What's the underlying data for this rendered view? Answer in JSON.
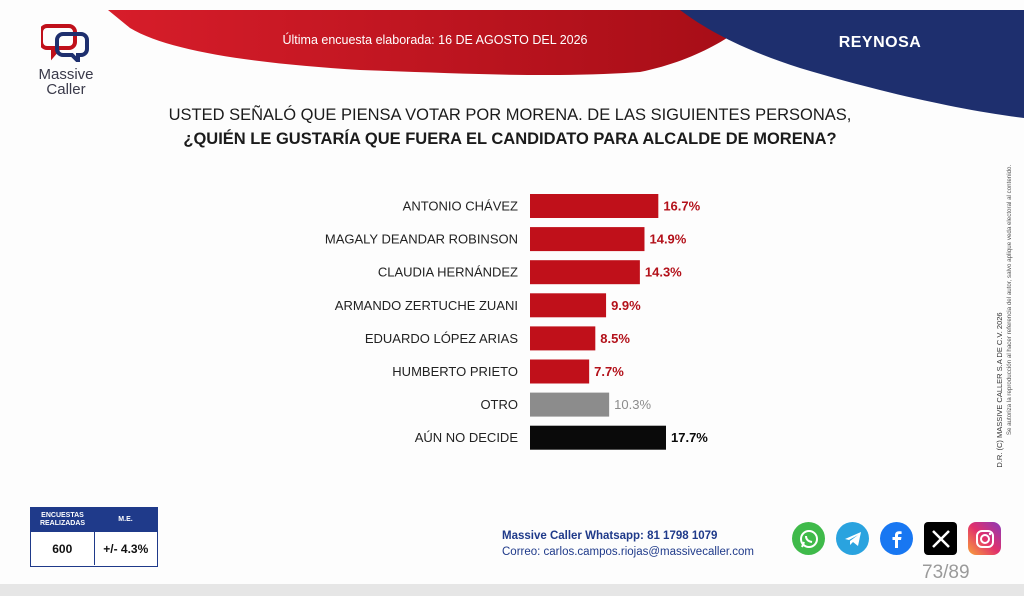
{
  "header": {
    "survey_date": "Última encuesta elaborada: 16 DE AGOSTO DEL 2026",
    "region": "REYNOSA"
  },
  "logo": {
    "line1": "Massive",
    "line2": "Caller"
  },
  "question": {
    "line1": "USTED SEÑALÓ QUE PIENSA VOTAR POR MORENA. DE LAS SIGUIENTES PERSONAS,",
    "line2": "¿QUIÉN LE GUSTARÍA QUE FUERA EL CANDIDATO PARA ALCALDE DE MORENA?"
  },
  "colors": {
    "brand_red": "#c0101a",
    "brand_navy": "#1e2f6e",
    "other_gray": "#8c8c8c",
    "undecided_black": "#0a0a0a"
  },
  "chart_data": {
    "type": "bar",
    "orientation": "horizontal",
    "categories": [
      "ANTONIO CHÁVEZ",
      "MAGALY DEANDAR ROBINSON",
      "CLAUDIA HERNÁNDEZ",
      "ARMANDO ZERTUCHE ZUANI",
      "EDUARDO LÓPEZ ARIAS",
      "HUMBERTO PRIETO",
      "OTRO",
      "AÚN NO DECIDE"
    ],
    "values": [
      16.7,
      14.9,
      14.3,
      9.9,
      8.5,
      7.7,
      10.3,
      17.7
    ],
    "value_labels": [
      "16.7%",
      "14.9%",
      "14.3%",
      "9.9%",
      "8.5%",
      "7.7%",
      "10.3%",
      "17.7%"
    ],
    "bar_colors": [
      "#c0101a",
      "#c0101a",
      "#c0101a",
      "#c0101a",
      "#c0101a",
      "#c0101a",
      "#8c8c8c",
      "#0a0a0a"
    ],
    "label_colors": [
      "#b3111a",
      "#b3111a",
      "#b3111a",
      "#b3111a",
      "#b3111a",
      "#b3111a",
      "#8c8c8c",
      "#0a0a0a"
    ],
    "title": "",
    "xlabel": "",
    "ylabel": "",
    "xlim": [
      0,
      17.7
    ],
    "grid": false,
    "legend": "none"
  },
  "side_note": {
    "line1": "D.R. (C) MASSIVE CALLER S.A DE C.V. 2026",
    "line2": "Se autoriza la reproducción al hacer referencia del autor, salvo aplique veda electoral al contenido."
  },
  "stats": {
    "col1_header_line1": "ENCUESTAS",
    "col1_header_line2": "REALIZADAS",
    "col2_header": "M.E.",
    "count": "600",
    "margin": "+/- 4.3%"
  },
  "contact": {
    "whatsapp": "Massive Caller Whatsapp: 81 1798 1079",
    "email": "Correo: carlos.campos.riojas@massivecaller.com"
  },
  "socials": [
    "whatsapp-icon",
    "telegram-icon",
    "facebook-icon",
    "x-icon",
    "instagram-icon"
  ],
  "page_number": "73/89"
}
